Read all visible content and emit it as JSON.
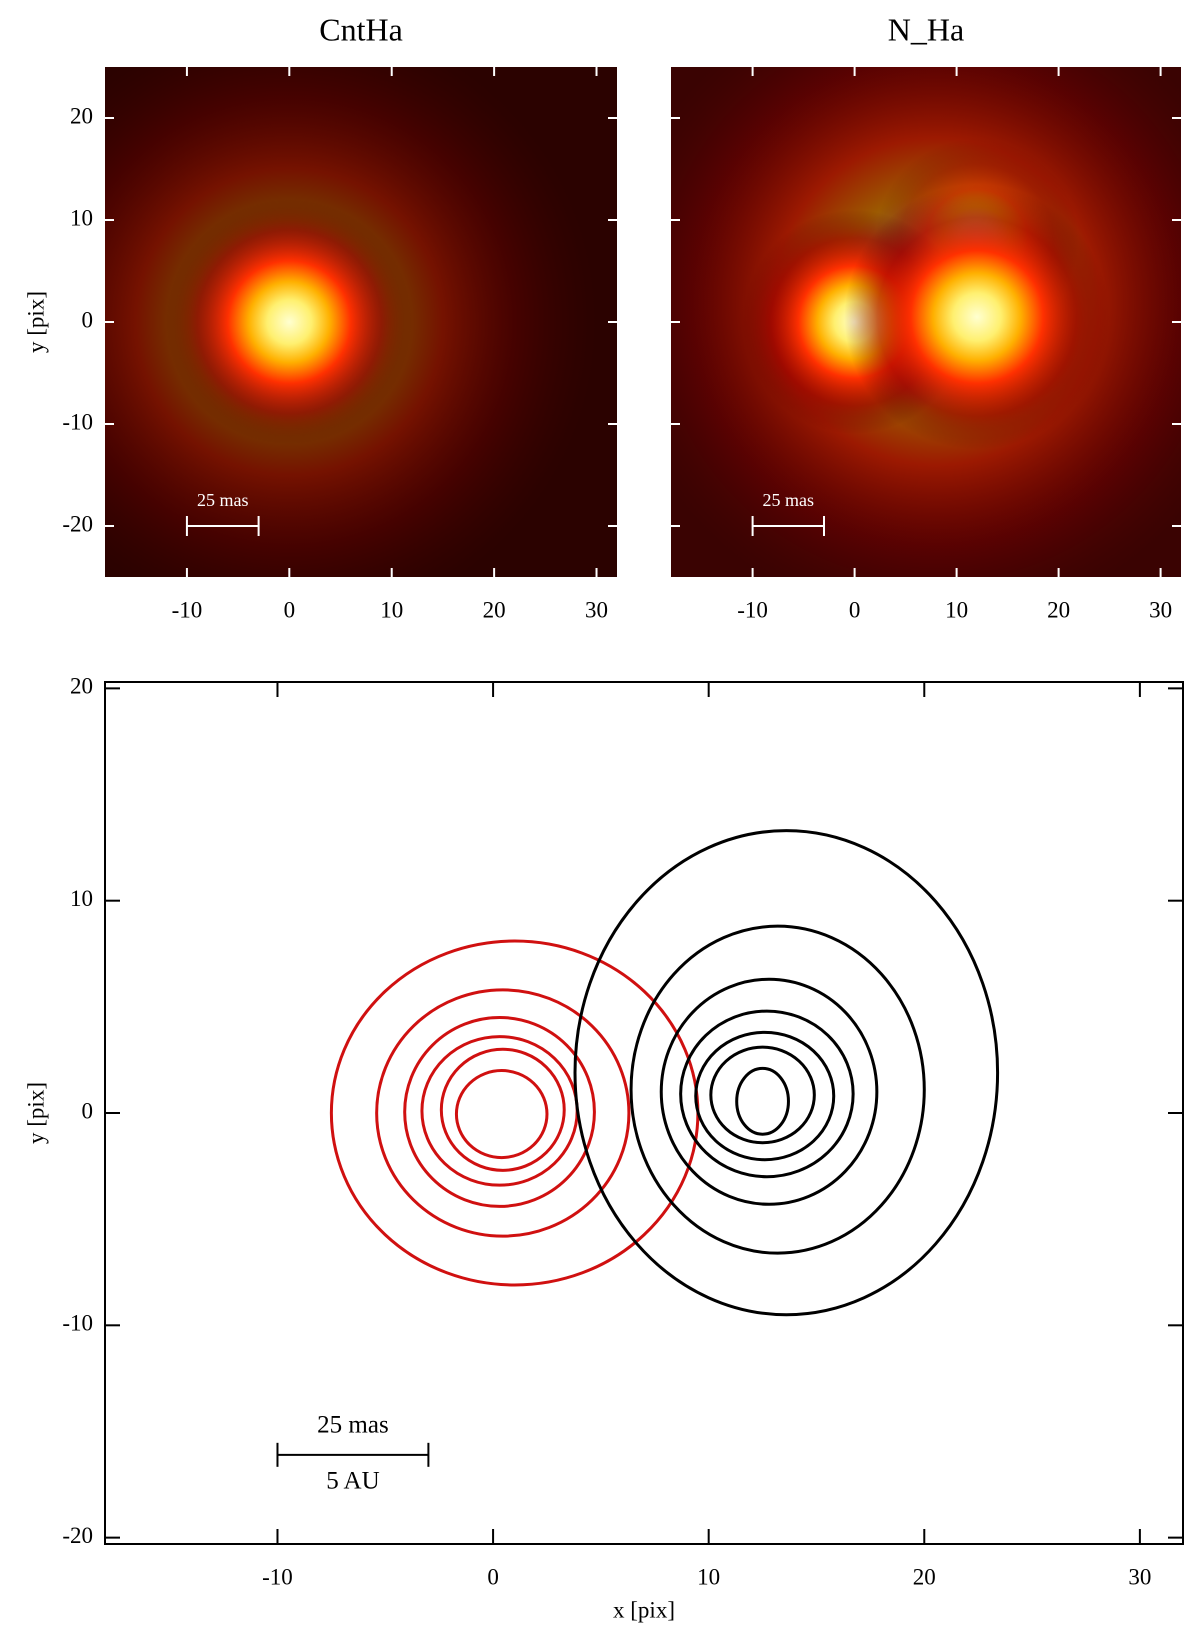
{
  "chart_data": [
    {
      "type": "image",
      "title": "CntHa",
      "ylabel": "y [pix]",
      "background": "#2b0200",
      "xlim": [
        -18,
        32
      ],
      "ylim": [
        -25,
        25
      ],
      "xticks": [
        -10,
        0,
        10,
        20,
        30
      ],
      "yticks": [
        -20,
        -10,
        0,
        10,
        20
      ],
      "sources": [
        {
          "x": 0,
          "y": 0,
          "radius": 30,
          "peak": 0.35
        },
        {
          "x": 0,
          "y": 0,
          "radius": 12,
          "peak": 1
        }
      ],
      "scale_bar": {
        "x": [
          -10,
          -3
        ],
        "y": -20,
        "label": "25 mas"
      }
    },
    {
      "type": "image",
      "title": "N_Ha",
      "background": "#3a0302",
      "ytick_labels": false,
      "xlim": [
        -18,
        32
      ],
      "ylim": [
        -25,
        25
      ],
      "xticks": [
        -10,
        0,
        10,
        20,
        30
      ],
      "yticks": [
        -20,
        -10,
        0,
        10,
        20
      ],
      "sources": [
        {
          "x": 8,
          "y": 2,
          "radius": 32,
          "peak": 0.5
        },
        {
          "x": 12,
          "y": 8,
          "radius": 10,
          "peak": 0.5
        },
        {
          "x": 0,
          "y": 0,
          "radius": 11,
          "peak": 1
        },
        {
          "x": 12,
          "y": 0.5,
          "radius": 13,
          "peak": 1
        }
      ],
      "scale_bar": {
        "x": [
          -10,
          -3
        ],
        "y": -20,
        "label": "25 mas"
      }
    },
    {
      "type": "contour",
      "xlabel": "x [pix]",
      "ylabel": "y [pix]",
      "xlim": [
        -18,
        32
      ],
      "ylim": [
        -20.3,
        20.3
      ],
      "xticks": [
        -10,
        0,
        10,
        20,
        30
      ],
      "yticks": [
        -20,
        -10,
        0,
        10,
        20
      ],
      "series": [
        {
          "color": "#d01010",
          "contours": [
            {
              "cx": 1,
              "cy": 0,
              "rx": 8.5,
              "ry": 8.1
            },
            {
              "cx": 0.45,
              "cy": 0,
              "rx": 5.85,
              "ry": 5.8
            },
            {
              "cx": 0.3,
              "cy": 0.05,
              "rx": 4.4,
              "ry": 4.45
            },
            {
              "cx": 0.3,
              "cy": 0.1,
              "rx": 3.6,
              "ry": 3.5
            },
            {
              "cx": 0.45,
              "cy": 0.15,
              "rx": 2.85,
              "ry": 2.85
            },
            {
              "cx": 0.4,
              "cy": -0.05,
              "rx": 2.1,
              "ry": 2.05
            }
          ]
        },
        {
          "color": "#000000",
          "contours": [
            {
              "cx": 13.6,
              "cy": 1.9,
              "rx": 9.8,
              "ry": 11.4
            },
            {
              "cx": 13.2,
              "cy": 1.1,
              "rx": 6.8,
              "ry": 7.7
            },
            {
              "cx": 12.8,
              "cy": 1.0,
              "rx": 5.0,
              "ry": 5.3
            },
            {
              "cx": 12.7,
              "cy": 0.9,
              "rx": 4.0,
              "ry": 3.9
            },
            {
              "cx": 12.6,
              "cy": 0.8,
              "rx": 3.2,
              "ry": 3.0
            },
            {
              "cx": 12.5,
              "cy": 0.85,
              "rx": 2.4,
              "ry": 2.25
            },
            {
              "cx": 12.5,
              "cy": 0.55,
              "rx": 1.2,
              "ry": 1.55
            }
          ]
        }
      ],
      "scale_bar": {
        "x": [
          -10,
          -3
        ],
        "y": -16.1,
        "label": "25 mas",
        "label_below": "5 AU"
      }
    }
  ]
}
